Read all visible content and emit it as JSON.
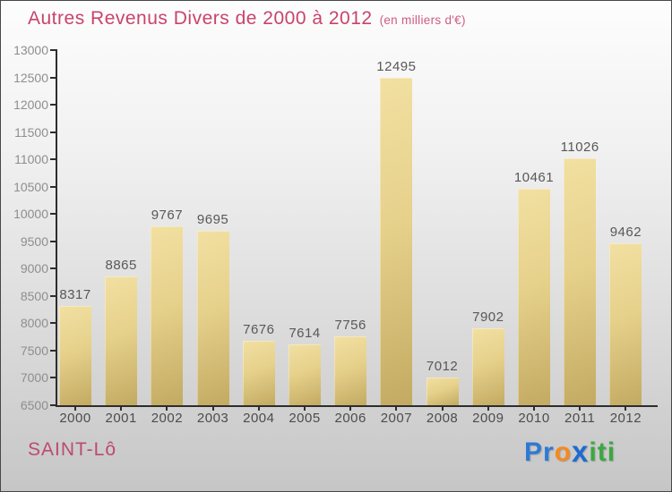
{
  "title": {
    "text": "Autres Revenus Divers de 2000 à 2012",
    "subtitle": "(en milliers d'€)",
    "color": "#c9436b"
  },
  "chart_data": {
    "type": "bar",
    "title": "Autres Revenus Divers de 2000 à 2012",
    "subtitle": "(en milliers d'€)",
    "categories": [
      "2000",
      "2001",
      "2002",
      "2003",
      "2004",
      "2005",
      "2006",
      "2007",
      "2008",
      "2009",
      "2010",
      "2011",
      "2012"
    ],
    "values": [
      8317,
      8865,
      9767,
      9695,
      7676,
      7614,
      7756,
      12495,
      7012,
      7902,
      10461,
      11026,
      9462
    ],
    "xlabel": "",
    "ylabel": "",
    "ylim": [
      6500,
      13000
    ],
    "ytick_step": 500,
    "grid": false,
    "legend": null,
    "data_labels": true,
    "bar_color_top": "#f2e0a2",
    "bar_color_bottom": "#c3aa62",
    "axis_color": "#2d2d2d",
    "ytick_label_color": "#8e8e8e",
    "xtick_label_color": "#4c4c4c",
    "value_label_color": "#585858"
  },
  "footer": {
    "location": "SAINT-Lô",
    "logo": {
      "text": "Proxiti",
      "letters": [
        {
          "char": "P",
          "color": "#2e7ad2",
          "bold": true
        },
        {
          "char": "r",
          "color": "#2e7ad2",
          "bold": true
        },
        {
          "char": "o",
          "color": "#f6891e",
          "bold": true
        },
        {
          "char": "x",
          "color": "#1d6bd0",
          "bold": true,
          "accent": true
        },
        {
          "char": "i",
          "color": "#3aa93f",
          "bold": true
        },
        {
          "char": "t",
          "color": "#3aa93f",
          "bold": true
        },
        {
          "char": "i",
          "color": "#3aa93f",
          "bold": true
        }
      ]
    }
  }
}
